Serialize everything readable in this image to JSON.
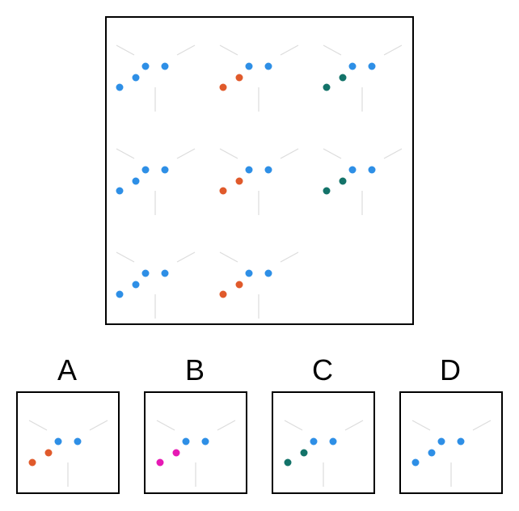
{
  "matrix": {
    "cells": [
      {
        "row": 0,
        "col": 0,
        "lower_color": "#2e8fe6",
        "upper_color": "#2e8fe6"
      },
      {
        "row": 0,
        "col": 1,
        "lower_color": "#e05a2b",
        "upper_color": "#2e8fe6"
      },
      {
        "row": 0,
        "col": 2,
        "lower_color": "#137369",
        "upper_color": "#2e8fe6"
      },
      {
        "row": 1,
        "col": 0,
        "lower_color": "#2e8fe6",
        "upper_color": "#2e8fe6"
      },
      {
        "row": 1,
        "col": 1,
        "lower_color": "#e05a2b",
        "upper_color": "#2e8fe6"
      },
      {
        "row": 1,
        "col": 2,
        "lower_color": "#137369",
        "upper_color": "#2e8fe6"
      },
      {
        "row": 2,
        "col": 0,
        "lower_color": "#2e8fe6",
        "upper_color": "#2e8fe6"
      },
      {
        "row": 2,
        "col": 1,
        "lower_color": "#e05a2b",
        "upper_color": "#2e8fe6"
      }
    ],
    "missing_cell": {
      "row": 2,
      "col": 2
    }
  },
  "options": [
    {
      "label": "A",
      "lower_color": "#e05a2b",
      "upper_color": "#2e8fe6"
    },
    {
      "label": "B",
      "lower_color": "#e619b4",
      "upper_color": "#2e8fe6"
    },
    {
      "label": "C",
      "lower_color": "#137369",
      "upper_color": "#2e8fe6"
    },
    {
      "label": "D",
      "lower_color": "#2e8fe6",
      "upper_color": "#2e8fe6"
    }
  ],
  "colors": {
    "border": "#000000",
    "guide_line": "#dcdcdc",
    "blue": "#2e8fe6",
    "orange": "#e05a2b",
    "teal": "#137369",
    "magenta": "#e619b4"
  }
}
